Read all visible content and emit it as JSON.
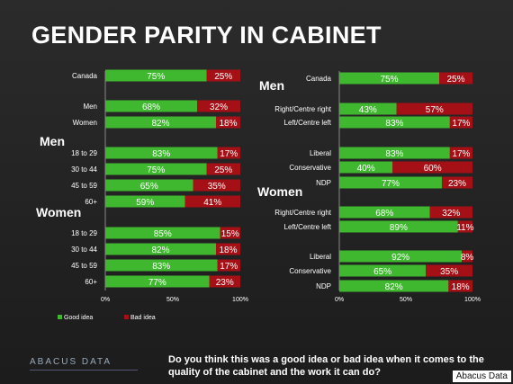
{
  "title": "GENDER PARITY IN CABINET",
  "colors": {
    "good": "#3fb82f",
    "bad": "#a51016",
    "axis": "#888888",
    "text": "#ffffff"
  },
  "legend": {
    "good": "Good idea",
    "bad": "Bad idea"
  },
  "question": "Do you think this was a good idea or bad idea when it comes to the quality of the cabinet and the work it can do?",
  "brand": "ABACUS DATA",
  "credit": "Abacus Data",
  "chart_data": [
    {
      "type": "bar",
      "orientation": "horizontal-stacked",
      "xlim": [
        0,
        100
      ],
      "xticks": [
        "0%",
        "50%",
        "100%"
      ],
      "groups": [
        {
          "header": "",
          "rows": [
            {
              "label": "Canada",
              "good": 75,
              "bad": 25
            }
          ]
        },
        {
          "header": "",
          "rows": [
            {
              "label": "Men",
              "good": 68,
              "bad": 32
            },
            {
              "label": "Women",
              "good": 82,
              "bad": 18
            }
          ]
        },
        {
          "header": "Men",
          "rows": [
            {
              "label": "18 to 29",
              "good": 83,
              "bad": 17
            },
            {
              "label": "30 to 44",
              "good": 75,
              "bad": 25
            },
            {
              "label": "45 to 59",
              "good": 65,
              "bad": 35
            },
            {
              "label": "60+",
              "good": 59,
              "bad": 41
            }
          ]
        },
        {
          "header": "Women",
          "rows": [
            {
              "label": "18 to 29",
              "good": 85,
              "bad": 15
            },
            {
              "label": "30 to 44",
              "good": 82,
              "bad": 18
            },
            {
              "label": "45 to 59",
              "good": 83,
              "bad": 17
            },
            {
              "label": "60+",
              "good": 77,
              "bad": 23
            }
          ]
        }
      ]
    },
    {
      "type": "bar",
      "orientation": "horizontal-stacked",
      "xlim": [
        0,
        100
      ],
      "xticks": [
        "0%",
        "50%",
        "100%"
      ],
      "groups": [
        {
          "header": "",
          "rows": [
            {
              "label": "Canada",
              "good": 75,
              "bad": 25
            }
          ]
        },
        {
          "header": "Men",
          "rows": [
            {
              "label": "Right/Centre right",
              "good": 43,
              "bad": 57
            },
            {
              "label": "Left/Centre left",
              "good": 83,
              "bad": 17
            },
            {
              "label": "Liberal",
              "good": 83,
              "bad": 17
            },
            {
              "label": "Conservative",
              "good": 40,
              "bad": 60
            },
            {
              "label": "NDP",
              "good": 77,
              "bad": 23
            }
          ]
        },
        {
          "header": "Women",
          "rows": [
            {
              "label": "Right/Centre right",
              "good": 68,
              "bad": 32
            },
            {
              "label": "Left/Centre left",
              "good": 89,
              "bad": 11
            },
            {
              "label": "Liberal",
              "good": 92,
              "bad": 8
            },
            {
              "label": "Conservative",
              "good": 65,
              "bad": 35
            },
            {
              "label": "NDP",
              "good": 82,
              "bad": 18
            }
          ]
        }
      ]
    }
  ]
}
